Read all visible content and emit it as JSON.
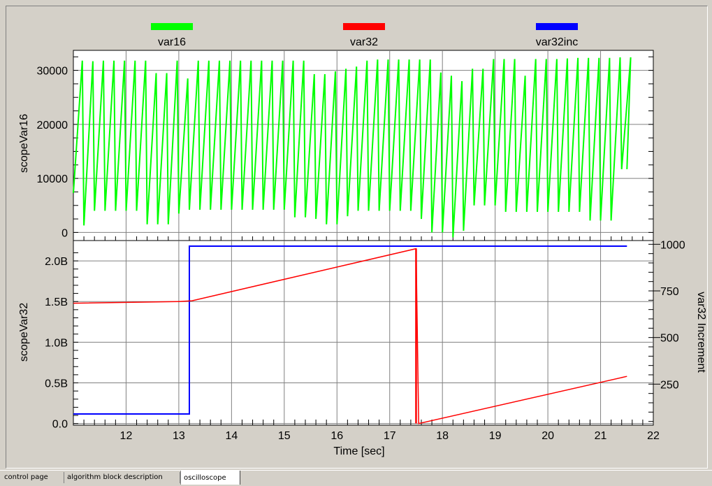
{
  "tabs": [
    {
      "label": "control page",
      "active": false
    },
    {
      "label": "algorithm block description",
      "active": false
    },
    {
      "label": "oscilloscope",
      "active": true
    }
  ],
  "chart_data": [
    {
      "type": "line",
      "xlabel": "",
      "ylabel": "scopeVar16",
      "xlim": [
        11,
        22
      ],
      "ylim": [
        -1500,
        33700
      ],
      "yticks": [
        0,
        10000,
        20000,
        30000
      ],
      "ytick_labels": [
        "0",
        "10000",
        "20000",
        "30000"
      ],
      "grid": true,
      "legend_placement": "top",
      "series": [
        {
          "name": "var16",
          "color": "#00ff00",
          "waveform": "sawtooth",
          "period_sec": 0.2,
          "x_start": 11.0,
          "x_end": 21.5,
          "peaks": [
            31800,
            31700,
            31800,
            31800,
            31800,
            31800,
            31800,
            29500,
            29500,
            31800,
            28500,
            31800,
            31800,
            31800,
            31800,
            31800,
            31800,
            31800,
            31800,
            31800,
            31800,
            31800,
            29300,
            29300,
            29800,
            30300,
            30700,
            31800,
            32000,
            32000,
            32000,
            32000,
            32000,
            32000,
            29600,
            29000,
            28000,
            30300,
            30300,
            32100,
            32100,
            32100,
            29000,
            32100,
            32100,
            32100,
            32200,
            32300,
            32300,
            32300,
            32300,
            32400,
            32400
          ],
          "troughs": [
            1300,
            1300,
            4000,
            4000,
            4000,
            4000,
            4000,
            1500,
            1500,
            1500,
            3500,
            4200,
            4200,
            4200,
            4200,
            4200,
            4200,
            4200,
            4200,
            4200,
            4200,
            2800,
            2800,
            2500,
            1500,
            1500,
            3000,
            4000,
            4000,
            4000,
            4000,
            4000,
            4000,
            2500,
            0,
            0,
            -900,
            300,
            5000,
            5000,
            5000,
            3800,
            3800,
            3800,
            3800,
            3800,
            3800,
            3800,
            3800,
            2200,
            2200,
            2200,
            11700
          ]
        }
      ]
    },
    {
      "type": "line",
      "xlabel": "Time [sec]",
      "ylabel": "scopeVar32",
      "y2label": "var32 Increment",
      "xlim": [
        11,
        22
      ],
      "ylim": [
        -0.02,
        2.25
      ],
      "yticks": [
        0.0,
        0.5,
        1.0,
        1.5,
        2.0
      ],
      "ytick_labels": [
        "0.0",
        "0.5B",
        "1.0B",
        "1.5B",
        "2.0B"
      ],
      "y2lim": [
        30,
        1020
      ],
      "y2ticks": [
        250,
        500,
        750,
        1000
      ],
      "y2tick_labels": [
        "250",
        "500",
        "750",
        "1000"
      ],
      "xticks": [
        12,
        13,
        14,
        15,
        16,
        17,
        18,
        19,
        20,
        21,
        22
      ],
      "xtick_labels": [
        "12",
        "13",
        "14",
        "15",
        "16",
        "17",
        "18",
        "19",
        "20",
        "21",
        "22"
      ],
      "grid": true,
      "series": [
        {
          "name": "var32",
          "color": "#ff0000",
          "axis": "left",
          "x": [
            11.0,
            13.0,
            13.25,
            17.5,
            17.5,
            17.55,
            21.5
          ],
          "y": [
            1.48,
            1.5,
            1.51,
            2.15,
            2.15,
            0.0,
            0.58
          ]
        },
        {
          "name": "var32inc",
          "color": "#0000ff",
          "axis": "right",
          "x": [
            11.0,
            13.2,
            13.2,
            21.5
          ],
          "y": [
            90,
            90,
            990,
            990
          ]
        }
      ]
    }
  ]
}
